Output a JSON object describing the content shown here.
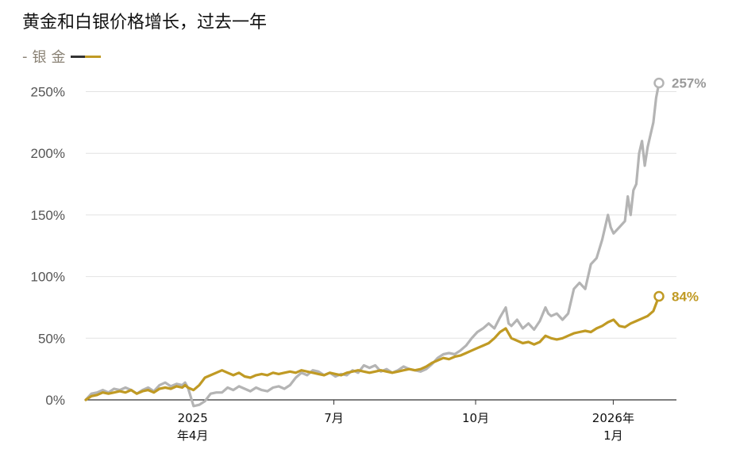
{
  "chart_data": {
    "type": "line",
    "title": "黄金和白银价格增长，过去一年",
    "legend_prefix": "-",
    "y_ticks": [
      "0%",
      "50%",
      "100%",
      "150%",
      "200%",
      "250%"
    ],
    "ylim": [
      0,
      260
    ],
    "x_ticks": [
      {
        "line1": "2025",
        "line2": "年4月",
        "t": 0.181
      },
      {
        "line1": "7月",
        "line2": "",
        "t": 0.42
      },
      {
        "line1": "10月",
        "line2": "",
        "t": 0.66
      },
      {
        "line1": "2026年",
        "line2": "1月",
        "t": 0.893
      }
    ],
    "series": [
      {
        "name": "银",
        "color": "#b4b4b4",
        "end_label": "257%",
        "points": [
          [
            0,
            0
          ],
          [
            0.01,
            5
          ],
          [
            0.02,
            6
          ],
          [
            0.03,
            8
          ],
          [
            0.04,
            6
          ],
          [
            0.05,
            9
          ],
          [
            0.06,
            8
          ],
          [
            0.07,
            10
          ],
          [
            0.08,
            8
          ],
          [
            0.09,
            5
          ],
          [
            0.1,
            8
          ],
          [
            0.11,
            10
          ],
          [
            0.12,
            7
          ],
          [
            0.13,
            12
          ],
          [
            0.14,
            14
          ],
          [
            0.15,
            11
          ],
          [
            0.16,
            13
          ],
          [
            0.17,
            12
          ],
          [
            0.175,
            14
          ],
          [
            0.18,
            10
          ],
          [
            0.19,
            -5
          ],
          [
            0.2,
            -4
          ],
          [
            0.21,
            -1
          ],
          [
            0.22,
            5
          ],
          [
            0.23,
            6
          ],
          [
            0.24,
            6
          ],
          [
            0.25,
            10
          ],
          [
            0.26,
            8
          ],
          [
            0.27,
            11
          ],
          [
            0.28,
            9
          ],
          [
            0.29,
            7
          ],
          [
            0.3,
            10
          ],
          [
            0.31,
            8
          ],
          [
            0.32,
            7
          ],
          [
            0.33,
            10
          ],
          [
            0.34,
            11
          ],
          [
            0.35,
            9
          ],
          [
            0.36,
            12
          ],
          [
            0.37,
            18
          ],
          [
            0.38,
            22
          ],
          [
            0.39,
            20
          ],
          [
            0.4,
            24
          ],
          [
            0.41,
            23
          ],
          [
            0.42,
            20
          ],
          [
            0.43,
            22
          ],
          [
            0.44,
            19
          ],
          [
            0.45,
            21
          ],
          [
            0.46,
            20
          ],
          [
            0.47,
            24
          ],
          [
            0.48,
            22
          ],
          [
            0.49,
            28
          ],
          [
            0.5,
            26
          ],
          [
            0.51,
            28
          ],
          [
            0.52,
            23
          ],
          [
            0.53,
            25
          ],
          [
            0.54,
            22
          ],
          [
            0.55,
            24
          ],
          [
            0.56,
            27
          ],
          [
            0.57,
            25
          ],
          [
            0.58,
            24
          ],
          [
            0.59,
            23
          ],
          [
            0.6,
            25
          ],
          [
            0.61,
            29
          ],
          [
            0.62,
            34
          ],
          [
            0.63,
            37
          ],
          [
            0.64,
            38
          ],
          [
            0.65,
            37
          ],
          [
            0.66,
            40
          ],
          [
            0.67,
            44
          ],
          [
            0.68,
            50
          ],
          [
            0.69,
            55
          ],
          [
            0.7,
            58
          ],
          [
            0.71,
            62
          ],
          [
            0.72,
            58
          ],
          [
            0.73,
            67
          ],
          [
            0.74,
            75
          ],
          [
            0.745,
            62
          ],
          [
            0.75,
            60
          ],
          [
            0.76,
            65
          ],
          [
            0.77,
            58
          ],
          [
            0.78,
            62
          ],
          [
            0.79,
            57
          ],
          [
            0.8,
            64
          ],
          [
            0.81,
            75
          ],
          [
            0.815,
            70
          ],
          [
            0.82,
            68
          ],
          [
            0.83,
            70
          ],
          [
            0.84,
            65
          ],
          [
            0.85,
            70
          ],
          [
            0.86,
            90
          ],
          [
            0.87,
            95
          ],
          [
            0.88,
            90
          ],
          [
            0.89,
            110
          ],
          [
            0.9,
            115
          ],
          [
            0.91,
            130
          ],
          [
            0.92,
            150
          ],
          [
            0.925,
            140
          ],
          [
            0.93,
            135
          ],
          [
            0.94,
            140
          ],
          [
            0.95,
            145
          ],
          [
            0.955,
            165
          ],
          [
            0.96,
            150
          ],
          [
            0.965,
            170
          ],
          [
            0.97,
            175
          ],
          [
            0.975,
            200
          ],
          [
            0.98,
            210
          ],
          [
            0.985,
            190
          ],
          [
            0.99,
            205
          ],
          [
            0.995,
            215
          ],
          [
            1.0,
            225
          ],
          [
            1.005,
            245
          ],
          [
            1.01,
            257
          ]
        ]
      },
      {
        "name": "金",
        "color": "#c09a24",
        "end_label": "84%",
        "points": [
          [
            0,
            0
          ],
          [
            0.01,
            3
          ],
          [
            0.02,
            4
          ],
          [
            0.03,
            6
          ],
          [
            0.04,
            5
          ],
          [
            0.05,
            6
          ],
          [
            0.06,
            7
          ],
          [
            0.07,
            6
          ],
          [
            0.08,
            8
          ],
          [
            0.09,
            5
          ],
          [
            0.1,
            7
          ],
          [
            0.11,
            8
          ],
          [
            0.12,
            6
          ],
          [
            0.13,
            9
          ],
          [
            0.14,
            10
          ],
          [
            0.15,
            9
          ],
          [
            0.16,
            11
          ],
          [
            0.17,
            10
          ],
          [
            0.175,
            12
          ],
          [
            0.18,
            10
          ],
          [
            0.19,
            8
          ],
          [
            0.2,
            12
          ],
          [
            0.21,
            18
          ],
          [
            0.22,
            20
          ],
          [
            0.23,
            22
          ],
          [
            0.24,
            24
          ],
          [
            0.25,
            22
          ],
          [
            0.26,
            20
          ],
          [
            0.27,
            22
          ],
          [
            0.28,
            19
          ],
          [
            0.29,
            18
          ],
          [
            0.3,
            20
          ],
          [
            0.31,
            21
          ],
          [
            0.32,
            20
          ],
          [
            0.33,
            22
          ],
          [
            0.34,
            21
          ],
          [
            0.35,
            22
          ],
          [
            0.36,
            23
          ],
          [
            0.37,
            22
          ],
          [
            0.38,
            24
          ],
          [
            0.39,
            23
          ],
          [
            0.4,
            22
          ],
          [
            0.41,
            21
          ],
          [
            0.42,
            20
          ],
          [
            0.43,
            22
          ],
          [
            0.44,
            21
          ],
          [
            0.45,
            20
          ],
          [
            0.46,
            22
          ],
          [
            0.47,
            23
          ],
          [
            0.48,
            24
          ],
          [
            0.49,
            23
          ],
          [
            0.5,
            22
          ],
          [
            0.51,
            23
          ],
          [
            0.52,
            24
          ],
          [
            0.53,
            23
          ],
          [
            0.54,
            22
          ],
          [
            0.55,
            23
          ],
          [
            0.56,
            24
          ],
          [
            0.57,
            25
          ],
          [
            0.58,
            24
          ],
          [
            0.59,
            25
          ],
          [
            0.6,
            27
          ],
          [
            0.61,
            30
          ],
          [
            0.62,
            32
          ],
          [
            0.63,
            34
          ],
          [
            0.64,
            33
          ],
          [
            0.65,
            35
          ],
          [
            0.66,
            36
          ],
          [
            0.67,
            38
          ],
          [
            0.68,
            40
          ],
          [
            0.69,
            42
          ],
          [
            0.7,
            44
          ],
          [
            0.71,
            46
          ],
          [
            0.72,
            50
          ],
          [
            0.73,
            55
          ],
          [
            0.74,
            58
          ],
          [
            0.75,
            50
          ],
          [
            0.76,
            48
          ],
          [
            0.77,
            46
          ],
          [
            0.78,
            47
          ],
          [
            0.79,
            45
          ],
          [
            0.8,
            47
          ],
          [
            0.81,
            52
          ],
          [
            0.82,
            50
          ],
          [
            0.83,
            49
          ],
          [
            0.84,
            50
          ],
          [
            0.85,
            52
          ],
          [
            0.86,
            54
          ],
          [
            0.87,
            55
          ],
          [
            0.88,
            56
          ],
          [
            0.89,
            55
          ],
          [
            0.9,
            58
          ],
          [
            0.91,
            60
          ],
          [
            0.92,
            63
          ],
          [
            0.93,
            65
          ],
          [
            0.94,
            60
          ],
          [
            0.95,
            59
          ],
          [
            0.96,
            62
          ],
          [
            0.97,
            64
          ],
          [
            0.98,
            66
          ],
          [
            0.99,
            68
          ],
          [
            1.0,
            72
          ],
          [
            1.005,
            78
          ],
          [
            1.01,
            84
          ]
        ]
      }
    ]
  }
}
